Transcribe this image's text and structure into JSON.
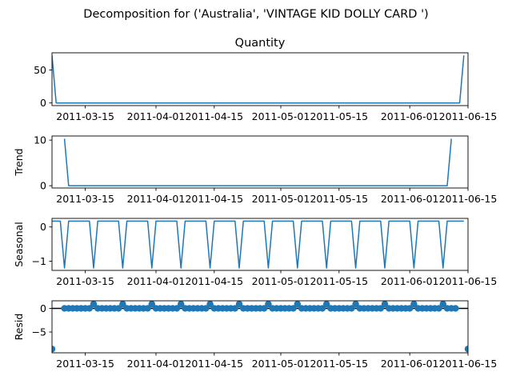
{
  "figure_title": "Decomposition for ('Australia', 'VINTAGE KID DOLLY CARD ')",
  "colors": {
    "line": "#1f77b4",
    "axis": "#000000",
    "zero_line": "#000000"
  },
  "chart_data": [
    {
      "type": "line",
      "title": "Quantity",
      "ylabel": "",
      "x_start": "2011-03-07",
      "x_end": "2011-06-15",
      "xlim": [
        "2011-03-07",
        "2011-06-15"
      ],
      "ylim": [
        -4,
        76
      ],
      "yticks": [
        0,
        50
      ],
      "xticks": [
        "2011-03-15",
        "2011-04-01",
        "2011-04-15",
        "2011-05-01",
        "2011-05-15",
        "2011-06-01",
        "2011-06-15"
      ],
      "series": [
        {
          "values": [
            72,
            0,
            0,
            0,
            0,
            0,
            0,
            0,
            0,
            0,
            0,
            0,
            0,
            0,
            0,
            0,
            0,
            0,
            0,
            0,
            0,
            0,
            0,
            0,
            0,
            0,
            0,
            0,
            0,
            0,
            0,
            0,
            0,
            0,
            0,
            0,
            0,
            0,
            0,
            0,
            0,
            0,
            0,
            0,
            0,
            0,
            0,
            0,
            0,
            0,
            0,
            0,
            0,
            0,
            0,
            0,
            0,
            0,
            0,
            0,
            0,
            0,
            0,
            0,
            0,
            0,
            0,
            0,
            0,
            0,
            0,
            0,
            0,
            0,
            0,
            0,
            0,
            0,
            0,
            0,
            0,
            0,
            0,
            0,
            0,
            0,
            0,
            0,
            0,
            0,
            0,
            0,
            0,
            0,
            0,
            0,
            0,
            0,
            0,
            72
          ]
        }
      ]
    },
    {
      "type": "line",
      "title": "",
      "ylabel": "Trend",
      "x_start": "2011-03-07",
      "x_end": "2011-06-15",
      "xlim": [
        "2011-03-07",
        "2011-06-15"
      ],
      "ylim": [
        -0.5,
        10.9
      ],
      "yticks": [
        0,
        10
      ],
      "xticks": [
        "2011-03-15",
        "2011-04-01",
        "2011-04-15",
        "2011-05-01",
        "2011-05-15",
        "2011-06-01",
        "2011-06-15"
      ],
      "series": [
        {
          "values": [
            null,
            null,
            null,
            10.3,
            0,
            0,
            0,
            0,
            0,
            0,
            0,
            0,
            0,
            0,
            0,
            0,
            0,
            0,
            0,
            0,
            0,
            0,
            0,
            0,
            0,
            0,
            0,
            0,
            0,
            0,
            0,
            0,
            0,
            0,
            0,
            0,
            0,
            0,
            0,
            0,
            0,
            0,
            0,
            0,
            0,
            0,
            0,
            0,
            0,
            0,
            0,
            0,
            0,
            0,
            0,
            0,
            0,
            0,
            0,
            0,
            0,
            0,
            0,
            0,
            0,
            0,
            0,
            0,
            0,
            0,
            0,
            0,
            0,
            0,
            0,
            0,
            0,
            0,
            0,
            0,
            0,
            0,
            0,
            0,
            0,
            0,
            0,
            0,
            0,
            0,
            0,
            0,
            0,
            0,
            0,
            0,
            10.3,
            null,
            null,
            null
          ]
        }
      ]
    },
    {
      "type": "line",
      "title": "",
      "ylabel": "Seasonal",
      "x_start": "2011-03-07",
      "x_end": "2011-06-15",
      "xlim": [
        "2011-03-07",
        "2011-06-15"
      ],
      "ylim": [
        -1.27,
        0.25
      ],
      "yticks": [
        -1,
        0
      ],
      "xticks": [
        "2011-03-15",
        "2011-04-01",
        "2011-04-15",
        "2011-05-01",
        "2011-05-15",
        "2011-06-01",
        "2011-06-15"
      ],
      "series": [
        {
          "values": [
            0.17,
            0.17,
            0.17,
            -1.2,
            0.17,
            0.17,
            0.17,
            0.17,
            0.17,
            0.17,
            -1.2,
            0.17,
            0.17,
            0.17,
            0.17,
            0.17,
            0.17,
            -1.2,
            0.17,
            0.17,
            0.17,
            0.17,
            0.17,
            0.17,
            -1.2,
            0.17,
            0.17,
            0.17,
            0.17,
            0.17,
            0.17,
            -1.2,
            0.17,
            0.17,
            0.17,
            0.17,
            0.17,
            0.17,
            -1.2,
            0.17,
            0.17,
            0.17,
            0.17,
            0.17,
            0.17,
            -1.2,
            0.17,
            0.17,
            0.17,
            0.17,
            0.17,
            0.17,
            -1.2,
            0.17,
            0.17,
            0.17,
            0.17,
            0.17,
            0.17,
            -1.2,
            0.17,
            0.17,
            0.17,
            0.17,
            0.17,
            0.17,
            -1.2,
            0.17,
            0.17,
            0.17,
            0.17,
            0.17,
            0.17,
            -1.2,
            0.17,
            0.17,
            0.17,
            0.17,
            0.17,
            0.17,
            -1.2,
            0.17,
            0.17,
            0.17,
            0.17,
            0.17,
            0.17,
            -1.2,
            0.17,
            0.17,
            0.17,
            0.17,
            0.17,
            0.17,
            -1.2,
            0.17,
            0.17,
            0.17,
            0.17,
            0.17
          ]
        }
      ]
    },
    {
      "type": "scatter",
      "title": "",
      "ylabel": "Resid",
      "x_start": "2011-03-07",
      "x_end": "2011-06-15",
      "xlim": [
        "2011-03-07",
        "2011-06-15"
      ],
      "ylim": [
        -9.4,
        1.6
      ],
      "yticks": [
        -5,
        0
      ],
      "xticks": [
        "2011-03-15",
        "2011-04-01",
        "2011-04-15",
        "2011-05-01",
        "2011-05-15",
        "2011-06-01",
        "2011-06-15"
      ],
      "zero_line": 0,
      "series": [
        {
          "values": [
            -8.6,
            null,
            null,
            0,
            0,
            0,
            0,
            0,
            0,
            0,
            0.9,
            0,
            0,
            0,
            0,
            0,
            0,
            0.9,
            0,
            0,
            0,
            0,
            0,
            0,
            0.9,
            0,
            0,
            0,
            0,
            0,
            0,
            0.9,
            0,
            0,
            0,
            0,
            0,
            0,
            0.9,
            0,
            0,
            0,
            0,
            0,
            0,
            0.9,
            0,
            0,
            0,
            0,
            0,
            0,
            0.9,
            0,
            0,
            0,
            0,
            0,
            0,
            0.9,
            0,
            0,
            0,
            0,
            0,
            0,
            0.9,
            0,
            0,
            0,
            0,
            0,
            0,
            0.9,
            0,
            0,
            0,
            0,
            0,
            0,
            0.9,
            0,
            0,
            0,
            0,
            0,
            0,
            0.9,
            0,
            0,
            0,
            0,
            0,
            0,
            0.9,
            0,
            0,
            0,
            null,
            null,
            -8.6
          ]
        }
      ]
    }
  ]
}
